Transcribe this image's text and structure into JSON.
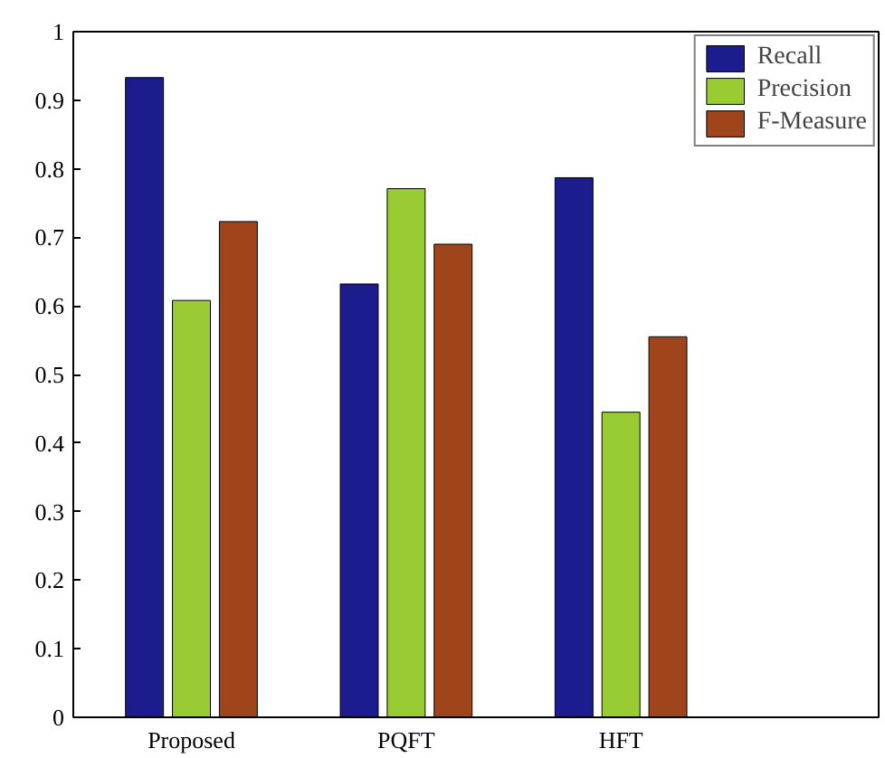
{
  "chart_data": {
    "type": "bar",
    "categories": [
      "Proposed",
      "PQFT",
      "HFT"
    ],
    "series": [
      {
        "name": "Recall",
        "color": "#1c1c8e",
        "values": [
          0.933,
          0.632,
          0.787
        ]
      },
      {
        "name": "Precision",
        "color": "#99cc33",
        "values": [
          0.608,
          0.771,
          0.445
        ]
      },
      {
        "name": "F-Measure",
        "color": "#a0441c",
        "values": [
          0.723,
          0.69,
          0.555
        ]
      }
    ],
    "ylim": [
      0,
      1
    ],
    "yticks": [
      0,
      0.1,
      0.2,
      0.3,
      0.4,
      0.5,
      0.6,
      0.7,
      0.8,
      0.9,
      1
    ],
    "grid": false,
    "legend": "top right"
  }
}
